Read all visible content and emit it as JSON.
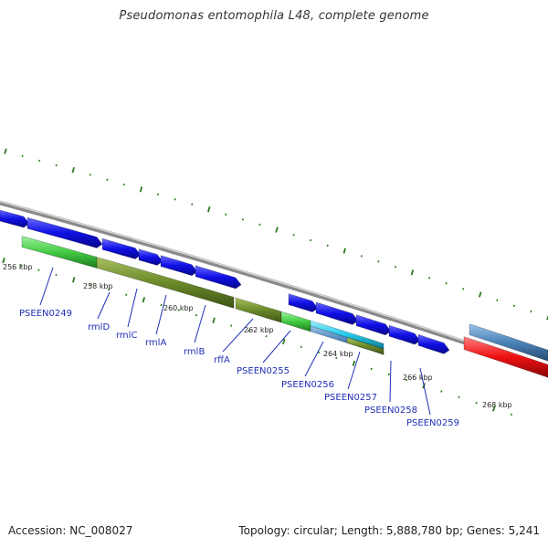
{
  "header": {
    "title": "Pseudomonas entomophila L48, complete genome"
  },
  "footer": {
    "accession": "Accession: NC_008027",
    "summary": "Topology: circular; Length: 5,888,780 bp; Genes: 5,241"
  },
  "map": {
    "kbp_labels": [
      "256 kbp",
      "258 kbp",
      "260 kbp",
      "262 kbp",
      "264 kbp",
      "266 kbp",
      "268 kbp"
    ],
    "gene_labels": [
      "PSEEN0249",
      "rmlD",
      "rmlC",
      "rmlA",
      "rmlB",
      "rffA",
      "PSEEN0255",
      "PSEEN0256",
      "PSEEN0257",
      "PSEEN0258",
      "PSEEN0259"
    ],
    "colors": {
      "cds_forward": "#1010e6",
      "backbone": "#8a8a8a",
      "green": "#44cc44",
      "olive": "#6b8a2a",
      "cyan": "#22c8e8",
      "steel": "#4a82b8",
      "red": "#ee1111",
      "tick": "#2a7a1a",
      "label": "#1f2fb8"
    }
  }
}
